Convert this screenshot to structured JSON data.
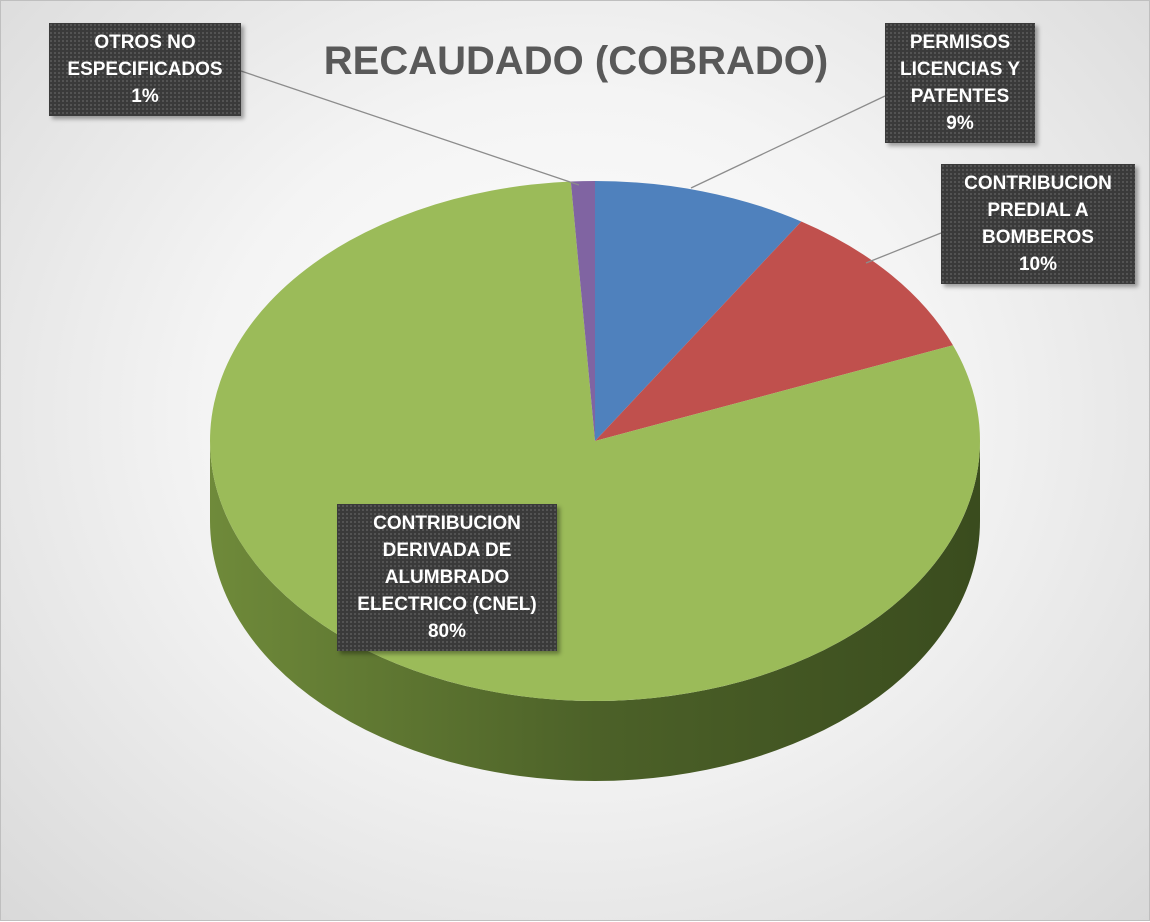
{
  "chart_data": {
    "type": "pie",
    "title": "RECAUDADO (COBRADO)",
    "categories": [
      "PERMISOS LICENCIAS Y PATENTES",
      "CONTRIBUCION PREDIAL A BOMBEROS",
      "CONTRIBUCION DERIVADA DE ALUMBRADO ELECTRICO (CNEL)",
      "OTROS NO ESPECIFICADOS"
    ],
    "values": [
      9,
      10,
      80,
      1
    ],
    "value_labels": [
      "9%",
      "10%",
      "80%",
      "1%"
    ],
    "colors": [
      "#4f81bd",
      "#c0504d",
      "#9bbb59",
      "#8064a2"
    ]
  }
}
